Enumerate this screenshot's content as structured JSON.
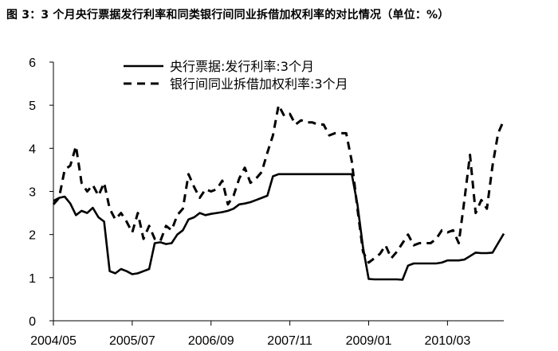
{
  "figure": {
    "title": "图 3：3 个月央行票据发行利率和同类银行间同业拆借加权利率的对比情况（单位：%）"
  },
  "chart_data": {
    "type": "line",
    "title": "图 3：3 个月央行票据发行利率和同类银行间同业拆借加权利率的对比情况（单位：%）",
    "xlabel": "",
    "ylabel": "",
    "x_tick_labels": [
      "2004/05",
      "2005/07",
      "2006/09",
      "2007/11",
      "2009/01",
      "2010/03"
    ],
    "x_tick_index": [
      0,
      14,
      28,
      42,
      56,
      70
    ],
    "y_ticks": [
      0,
      1,
      2,
      3,
      4,
      5,
      6
    ],
    "ylim": [
      0,
      6
    ],
    "x_count": 81,
    "grid": false,
    "legend_position": "top-center",
    "series": [
      {
        "name": "央行票据:发行利率:3个月",
        "style": "solid",
        "color": "#000000",
        "values": [
          2.78,
          2.85,
          2.88,
          2.72,
          2.45,
          2.55,
          2.5,
          2.62,
          2.4,
          2.3,
          1.15,
          1.1,
          1.2,
          1.15,
          1.08,
          1.1,
          1.15,
          1.2,
          1.8,
          1.82,
          1.78,
          1.8,
          2.0,
          2.1,
          2.35,
          2.4,
          2.5,
          2.45,
          2.48,
          2.5,
          2.52,
          2.55,
          2.6,
          2.7,
          2.72,
          2.75,
          2.8,
          2.85,
          2.9,
          3.35,
          3.4,
          3.4,
          3.4,
          3.4,
          3.4,
          3.4,
          3.4,
          3.4,
          3.4,
          3.4,
          3.4,
          3.4,
          3.4,
          3.4,
          2.7,
          1.7,
          0.97,
          0.96,
          0.96,
          0.96,
          0.96,
          0.96,
          0.95,
          1.28,
          1.33,
          1.33,
          1.33,
          1.33,
          1.33,
          1.35,
          1.4,
          1.4,
          1.4,
          1.42,
          1.5,
          1.58,
          1.57,
          1.57,
          1.58,
          1.8,
          2.02
        ]
      },
      {
        "name": "银行间同业拆借加权利率:3个月",
        "style": "dashed",
        "color": "#000000",
        "values": [
          2.7,
          2.85,
          3.5,
          3.6,
          4.05,
          3.2,
          3.0,
          3.15,
          2.9,
          3.2,
          2.6,
          2.35,
          2.5,
          2.3,
          2.05,
          2.5,
          1.9,
          2.2,
          1.9,
          1.85,
          2.2,
          2.1,
          2.45,
          2.6,
          3.4,
          3.1,
          2.85,
          3.05,
          3.0,
          3.05,
          3.25,
          2.7,
          2.9,
          3.3,
          3.55,
          3.2,
          3.3,
          3.45,
          3.9,
          4.3,
          5.0,
          4.75,
          4.8,
          4.55,
          4.65,
          4.6,
          4.6,
          4.55,
          4.55,
          4.3,
          4.35,
          4.35,
          4.35,
          3.7,
          2.6,
          1.6,
          1.35,
          1.45,
          1.55,
          1.75,
          1.45,
          1.6,
          1.8,
          2.0,
          1.75,
          1.8,
          1.8,
          1.8,
          1.9,
          2.1,
          2.05,
          2.1,
          1.8,
          2.8,
          3.85,
          2.5,
          2.8,
          2.6,
          3.6,
          4.35,
          4.65
        ]
      }
    ]
  }
}
